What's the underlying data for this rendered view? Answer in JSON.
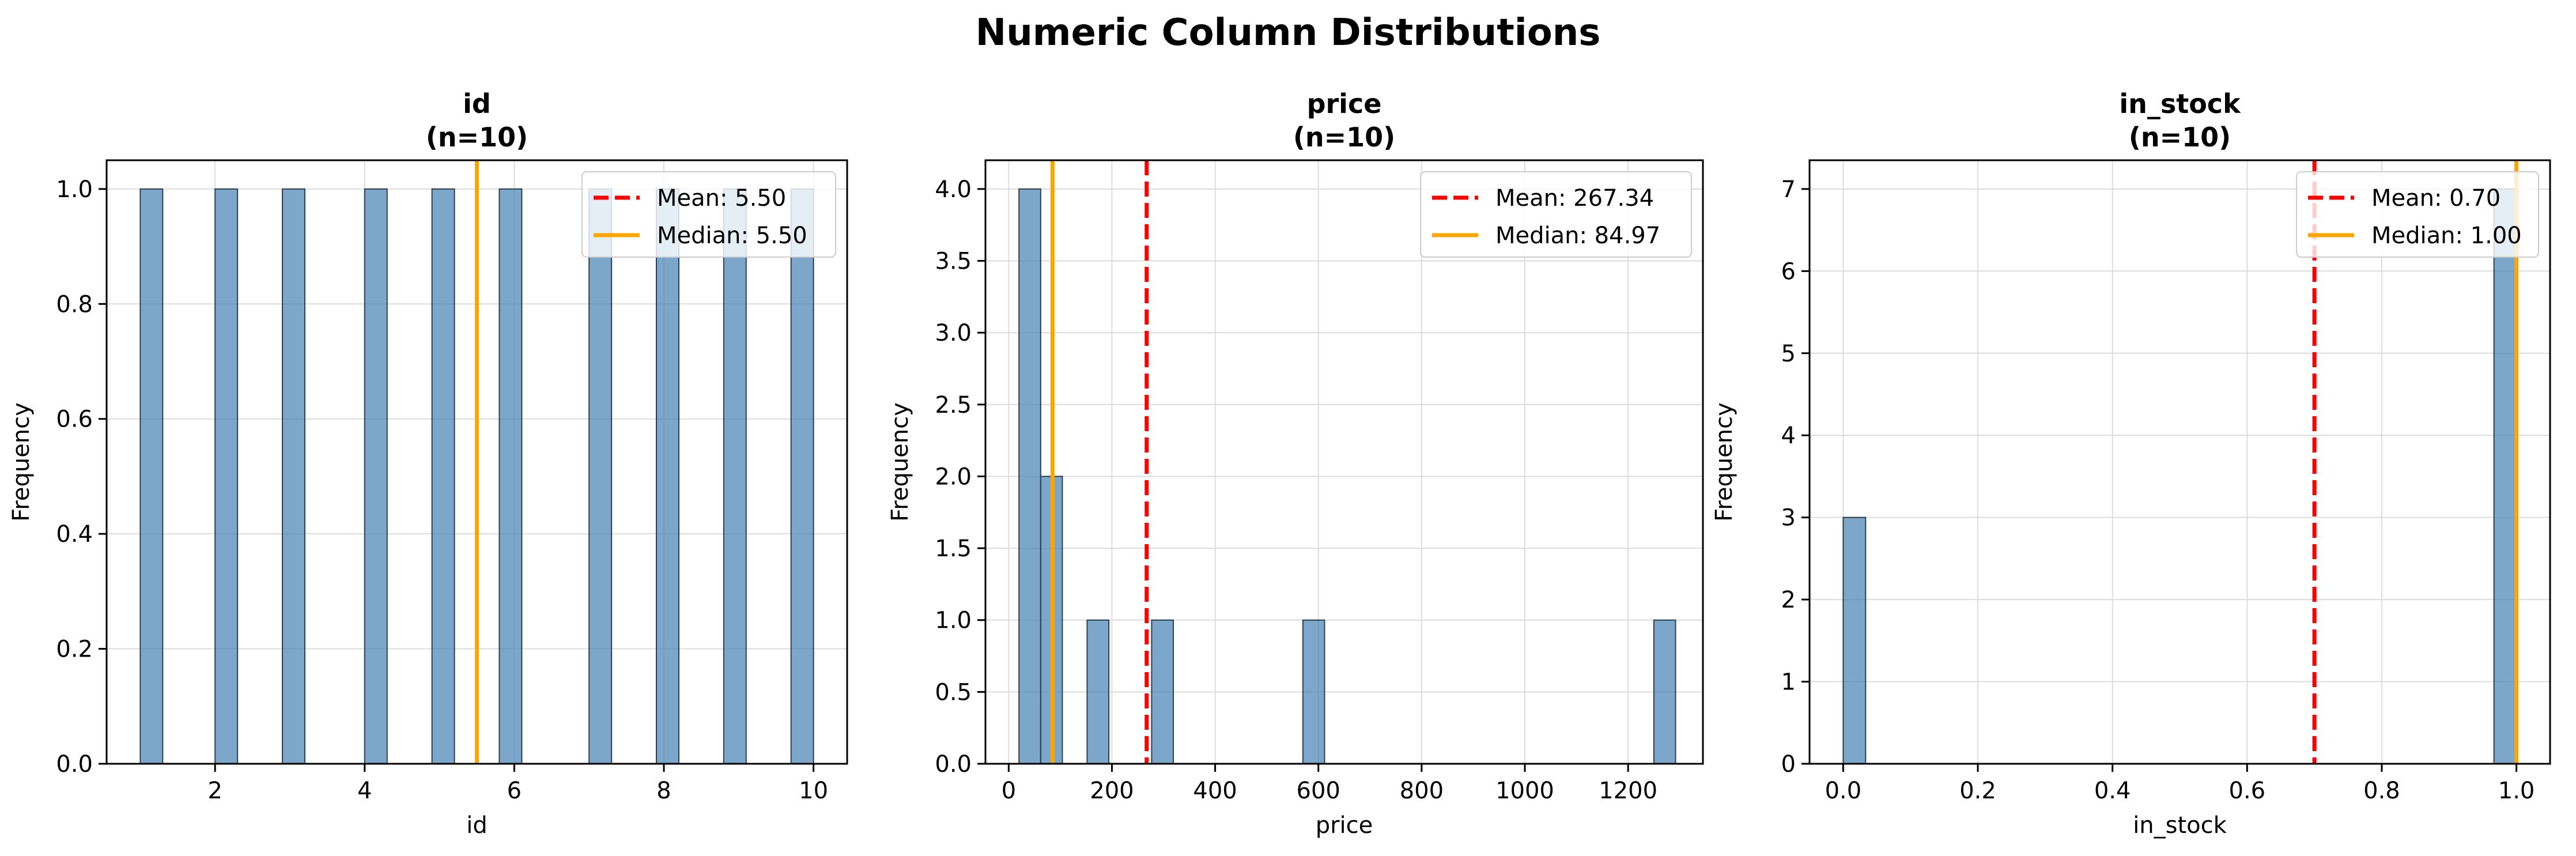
{
  "figure_title": "Numeric Column Distributions",
  "colors": {
    "bar_fill": "#4682b4",
    "bar_edge": "#2f3f50",
    "mean_line": "#ff0000",
    "median_line": "#ffa500",
    "grid": "#dcdcdc"
  },
  "chart_data": [
    {
      "type": "bar",
      "title": "id\n(n=10)",
      "xlabel": "id",
      "ylabel": "Frequency",
      "xlim": [
        0.55,
        10.45
      ],
      "ylim": [
        0,
        1.05
      ],
      "xticks": [
        2,
        4,
        6,
        8,
        10
      ],
      "xtick_labels": [
        "2",
        "4",
        "6",
        "8",
        "10"
      ],
      "yticks": [
        0.0,
        0.2,
        0.4,
        0.6,
        0.8,
        1.0
      ],
      "ytick_labels": [
        "0.0",
        "0.2",
        "0.4",
        "0.6",
        "0.8",
        "1.0"
      ],
      "grid": true,
      "legend_position": "top-right",
      "bins": [
        {
          "x0": 1.0,
          "x1": 1.3,
          "count": 1
        },
        {
          "x0": 2.0,
          "x1": 2.3,
          "count": 1
        },
        {
          "x0": 2.9,
          "x1": 3.2,
          "count": 1
        },
        {
          "x0": 4.0,
          "x1": 4.3,
          "count": 1
        },
        {
          "x0": 4.9,
          "x1": 5.2,
          "count": 1
        },
        {
          "x0": 5.8,
          "x1": 6.1,
          "count": 1
        },
        {
          "x0": 7.0,
          "x1": 7.3,
          "count": 1
        },
        {
          "x0": 7.9,
          "x1": 8.2,
          "count": 1
        },
        {
          "x0": 8.8,
          "x1": 9.1,
          "count": 1
        },
        {
          "x0": 9.7,
          "x1": 10.0,
          "count": 1
        }
      ],
      "mean": 5.5,
      "median": 5.5,
      "legend": [
        "Mean: 5.50",
        "Median: 5.50"
      ]
    },
    {
      "type": "bar",
      "title": "price\n(n=10)",
      "xlabel": "price",
      "ylabel": "Frequency",
      "xlim": [
        -45,
        1345
      ],
      "ylim": [
        0,
        4.2
      ],
      "xticks": [
        0,
        200,
        400,
        600,
        800,
        1000,
        1200
      ],
      "xtick_labels": [
        "0",
        "200",
        "400",
        "600",
        "800",
        "1000",
        "1200"
      ],
      "yticks": [
        0.0,
        0.5,
        1.0,
        1.5,
        2.0,
        2.5,
        3.0,
        3.5,
        4.0
      ],
      "ytick_labels": [
        "0.0",
        "0.5",
        "1.0",
        "1.5",
        "2.0",
        "2.5",
        "3.0",
        "3.5",
        "4.0"
      ],
      "grid": true,
      "legend_position": "top-right",
      "bins": [
        {
          "x0": 20,
          "x1": 62,
          "count": 4
        },
        {
          "x0": 62,
          "x1": 104,
          "count": 2
        },
        {
          "x0": 152,
          "x1": 194,
          "count": 1
        },
        {
          "x0": 277,
          "x1": 319,
          "count": 1
        },
        {
          "x0": 570,
          "x1": 612,
          "count": 1
        },
        {
          "x0": 1250,
          "x1": 1292,
          "count": 1
        }
      ],
      "mean": 267.34,
      "median": 84.97,
      "legend": [
        "Mean: 267.34",
        "Median: 84.97"
      ]
    },
    {
      "type": "bar",
      "title": "in_stock\n(n=10)",
      "xlabel": "in_stock",
      "ylabel": "Frequency",
      "xlim": [
        -0.05,
        1.05
      ],
      "ylim": [
        0,
        7.35
      ],
      "xticks": [
        0.0,
        0.2,
        0.4,
        0.6,
        0.8,
        1.0
      ],
      "xtick_labels": [
        "0.0",
        "0.2",
        "0.4",
        "0.6",
        "0.8",
        "1.0"
      ],
      "yticks": [
        0,
        1,
        2,
        3,
        4,
        5,
        6,
        7
      ],
      "ytick_labels": [
        "0",
        "1",
        "2",
        "3",
        "4",
        "5",
        "6",
        "7"
      ],
      "grid": true,
      "legend_position": "top-right",
      "bins": [
        {
          "x0": 0.0,
          "x1": 0.0333,
          "count": 3
        },
        {
          "x0": 0.9667,
          "x1": 1.0,
          "count": 7
        }
      ],
      "mean": 0.7,
      "median": 1.0,
      "legend": [
        "Mean: 0.70",
        "Median: 1.00"
      ]
    }
  ]
}
